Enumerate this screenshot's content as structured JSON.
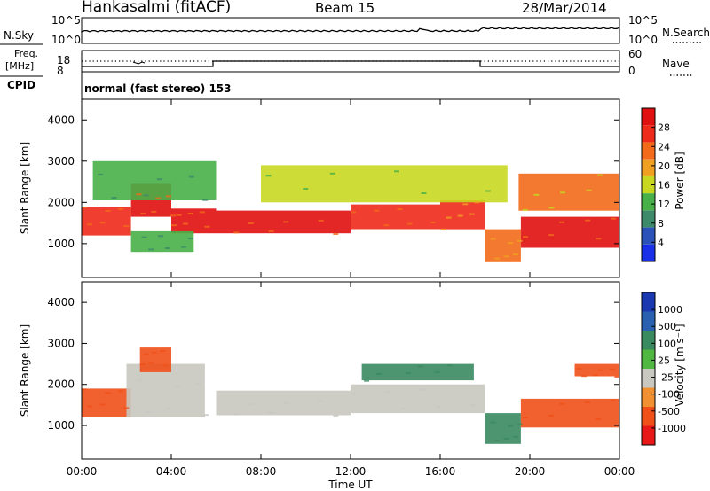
{
  "header": {
    "station": "Hankasalmi (fitACF)",
    "beam": "Beam 15",
    "date": "28/Mar/2014"
  },
  "nsky_panel": {
    "label": "N.Sky",
    "left_ticks": [
      "10^5",
      "10^0"
    ],
    "right_ticks": [
      "10^5",
      "10^0"
    ],
    "right_label": "N.Search"
  },
  "freq_panel": {
    "label_line1": "Freq.",
    "label_line2": "[MHz]",
    "left_ticks": [
      "18",
      "8"
    ],
    "right_ticks": [
      "60",
      "0"
    ],
    "right_label": "Nave",
    "cpid_label": "CPID",
    "cpid_value": "normal (fast stereo) 153"
  },
  "power_panel": {
    "ylabel": "Slant Range [km]",
    "cbar_label": "Power [dB]",
    "cbar_ticks": [
      "28",
      "24",
      "20",
      "16",
      "12",
      "8",
      "4"
    ]
  },
  "velocity_panel": {
    "ylabel": "Slant Range [km]",
    "cbar_label": "Velocity [m s⁻¹]",
    "cbar_ticks": [
      "1000",
      "500",
      "100",
      "25",
      "-25",
      "-100",
      "-500",
      "-1000"
    ]
  },
  "x_axis": {
    "label": "Time UT",
    "ticks": [
      "00:00",
      "04:00",
      "08:00",
      "12:00",
      "16:00",
      "20:00",
      "00:00"
    ]
  },
  "colors": {
    "power": [
      "#1a2fe8",
      "#2a52b8",
      "#3d8a6a",
      "#48b048",
      "#c8d820",
      "#f0a020",
      "#f26a1a",
      "#ee2a1a",
      "#e01010"
    ],
    "velocity": [
      "#e81818",
      "#f05018",
      "#f09030",
      "#c8c8c0",
      "#c0c0b8",
      "#50b840",
      "#3a8a60",
      "#2a60b0",
      "#1a38b0"
    ]
  },
  "chart_data": [
    {
      "type": "heatmap",
      "title": "Power",
      "xlabel": "Time UT",
      "ylabel": "Slant Range [km]",
      "xlim": [
        0,
        24
      ],
      "ylim": [
        180,
        4500
      ],
      "x_ticks": [
        0,
        4,
        8,
        12,
        16,
        20,
        24
      ],
      "y_ticks": [
        1000,
        2000,
        3000,
        4000
      ],
      "colorbar": {
        "label": "Power [dB]",
        "ticks": [
          4,
          8,
          12,
          16,
          20,
          24,
          28
        ],
        "range": [
          0,
          30
        ]
      },
      "bands": [
        {
          "t0": 0.0,
          "t1": 2.2,
          "r0": 1200,
          "r1": 1900,
          "value": 26
        },
        {
          "t0": 2.2,
          "t1": 4.0,
          "r0": 1650,
          "r1": 2450,
          "value": 27
        },
        {
          "t0": 4.0,
          "t1": 6.0,
          "r0": 1250,
          "r1": 1850,
          "value": 28
        },
        {
          "t0": 6.0,
          "t1": 12.0,
          "r0": 1250,
          "r1": 1800,
          "value": 27
        },
        {
          "t0": 12.0,
          "t1": 16.0,
          "r0": 1350,
          "r1": 1950,
          "value": 25
        },
        {
          "t0": 16.0,
          "t1": 18.0,
          "r0": 1350,
          "r1": 2050,
          "value": 24
        },
        {
          "t0": 18.0,
          "t1": 19.6,
          "r0": 550,
          "r1": 1350,
          "value": 22
        },
        {
          "t0": 19.6,
          "t1": 24.0,
          "r0": 900,
          "r1": 1650,
          "value": 27
        },
        {
          "t0": 0.5,
          "t1": 6.0,
          "r0": 2050,
          "r1": 3000,
          "value": 12
        },
        {
          "t0": 8.0,
          "t1": 19.0,
          "r0": 2000,
          "r1": 2900,
          "value": 14
        },
        {
          "t0": 19.5,
          "t1": 24.0,
          "r0": 1800,
          "r1": 2700,
          "value": 20
        },
        {
          "t0": 2.2,
          "t1": 5.0,
          "r0": 800,
          "r1": 1300,
          "value": 10
        }
      ]
    },
    {
      "type": "heatmap",
      "title": "Velocity",
      "xlabel": "Time UT",
      "ylabel": "Slant Range [km]",
      "xlim": [
        0,
        24
      ],
      "ylim": [
        180,
        4500
      ],
      "x_ticks": [
        0,
        4,
        8,
        12,
        16,
        20,
        24
      ],
      "y_ticks": [
        1000,
        2000,
        3000,
        4000
      ],
      "colorbar": {
        "label": "Velocity [m s⁻¹]",
        "ticks": [
          -1000,
          -500,
          -100,
          -25,
          25,
          100,
          500,
          1000
        ]
      },
      "bands": [
        {
          "t0": 0.0,
          "t1": 2.2,
          "r0": 1200,
          "r1": 1900,
          "value": -300
        },
        {
          "t0": 2.0,
          "t1": 5.5,
          "r0": 1200,
          "r1": 2500,
          "value": 0
        },
        {
          "t0": 2.6,
          "t1": 4.0,
          "r0": 2300,
          "r1": 2900,
          "value": -300
        },
        {
          "t0": 6.0,
          "t1": 12.0,
          "r0": 1250,
          "r1": 1850,
          "value": 0
        },
        {
          "t0": 12.0,
          "t1": 18.0,
          "r0": 1300,
          "r1": 2000,
          "value": 0
        },
        {
          "t0": 12.5,
          "t1": 17.5,
          "r0": 2100,
          "r1": 2500,
          "value": 250
        },
        {
          "t0": 18.0,
          "t1": 19.6,
          "r0": 550,
          "r1": 1300,
          "value": 150
        },
        {
          "t0": 19.6,
          "t1": 24.0,
          "r0": 950,
          "r1": 1650,
          "value": -250
        },
        {
          "t0": 22.0,
          "t1": 24.0,
          "r0": 2200,
          "r1": 2500,
          "value": -300
        }
      ]
    }
  ]
}
